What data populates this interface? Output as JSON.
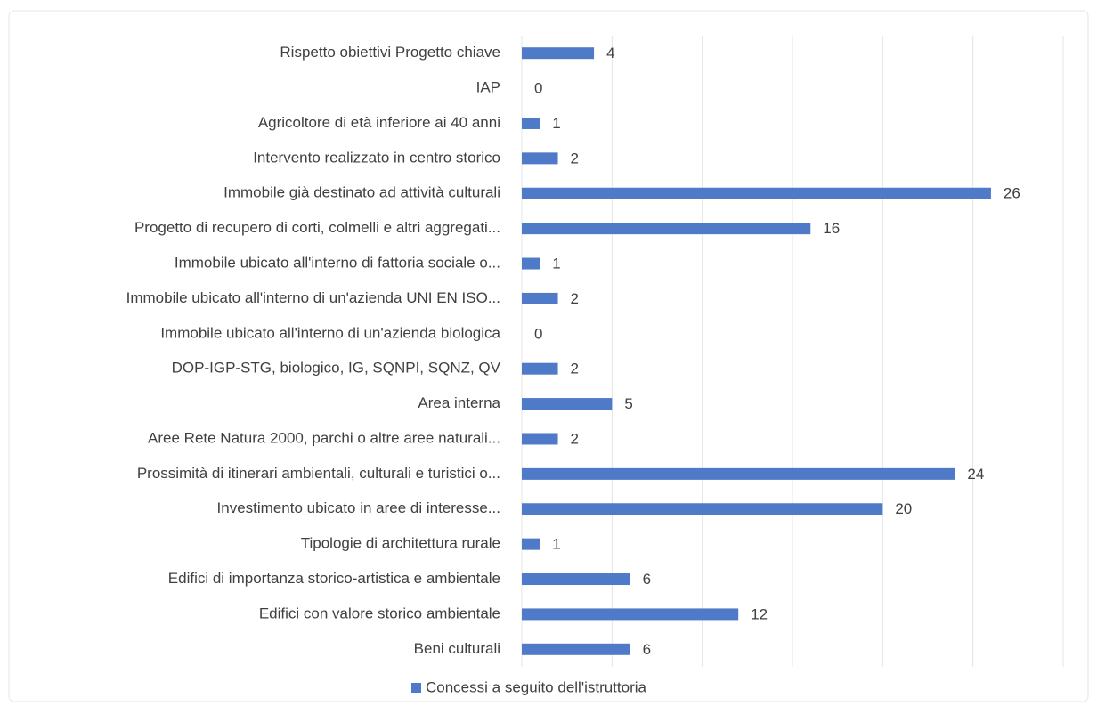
{
  "chart_data": {
    "type": "hbar",
    "categories": [
      "Rispetto obiettivi Progetto chiave",
      "IAP",
      "Agricoltore di età inferiore ai 40 anni",
      "Intervento realizzato in centro storico",
      "Immobile già destinato ad attività culturali",
      "Progetto di recupero di corti, colmelli e altri aggregati...",
      "Immobile ubicato all'interno di fattoria sociale o...",
      "Immobile ubicato all'interno di un'azienda UNI EN ISO...",
      "Immobile ubicato all'interno di un'azienda biologica",
      "DOP-IGP-STG, biologico, IG, SQNPI, SQNZ, QV",
      "Area interna",
      "Aree Rete Natura 2000, parchi o altre aree naturali...",
      "Prossimità di itinerari ambientali, culturali e turistici o...",
      "Investimento ubicato in aree di interesse...",
      "Tipologie di architettura rurale",
      "Edifici di importanza storico-artistica e ambientale",
      "Edifici con valore storico ambientale",
      "Beni culturali"
    ],
    "series": [
      {
        "name": "Concessi a seguito dell'istruttoria",
        "color": "#4f7ac7",
        "values": [
          4,
          0,
          1,
          2,
          26,
          16,
          1,
          2,
          0,
          2,
          5,
          2,
          24,
          20,
          1,
          6,
          12,
          6
        ]
      }
    ],
    "xlim": [
      0,
      30
    ],
    "xticks": [
      0,
      5,
      10,
      15,
      20,
      25,
      30
    ],
    "grid": true,
    "legend": "bottom"
  }
}
